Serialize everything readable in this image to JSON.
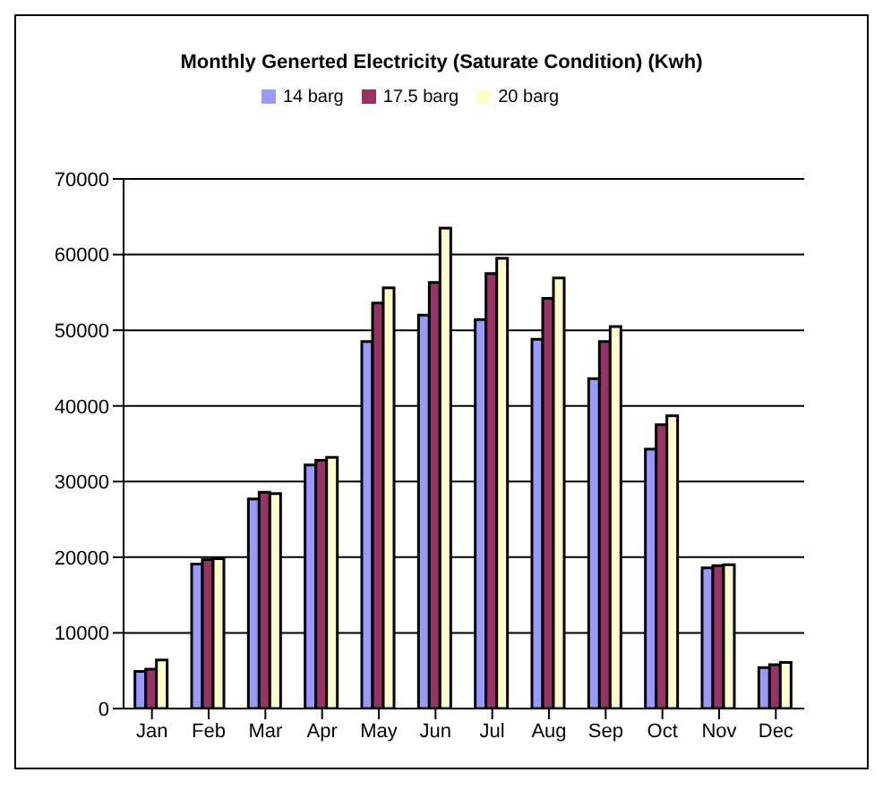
{
  "chart_data": {
    "type": "bar",
    "title": "Monthly Generted Electricity (Saturate Condition) (Kwh)",
    "categories": [
      "Jan",
      "Feb",
      "Mar",
      "Apr",
      "May",
      "Jun",
      "Jul",
      "Aug",
      "Sep",
      "Oct",
      "Nov",
      "Dec"
    ],
    "series": [
      {
        "name": "14 barg",
        "color": "#9999ff",
        "values": [
          4900,
          19100,
          27700,
          32200,
          48500,
          52000,
          51400,
          48800,
          43600,
          34300,
          18600,
          5400
        ]
      },
      {
        "name": "17.5 barg",
        "color": "#993366",
        "values": [
          5200,
          19700,
          28600,
          32800,
          53600,
          56300,
          57500,
          54200,
          48500,
          37500,
          18900,
          5800
        ]
      },
      {
        "name": "20 barg",
        "color": "#ffffcc",
        "values": [
          6400,
          19800,
          28400,
          33200,
          55600,
          63500,
          59500,
          56900,
          50500,
          38700,
          19000,
          6100
        ]
      }
    ],
    "ylim": [
      0,
      70000
    ],
    "yticks": [
      0,
      10000,
      20000,
      30000,
      40000,
      50000,
      60000,
      70000
    ],
    "grid": "y",
    "legend": "top"
  }
}
